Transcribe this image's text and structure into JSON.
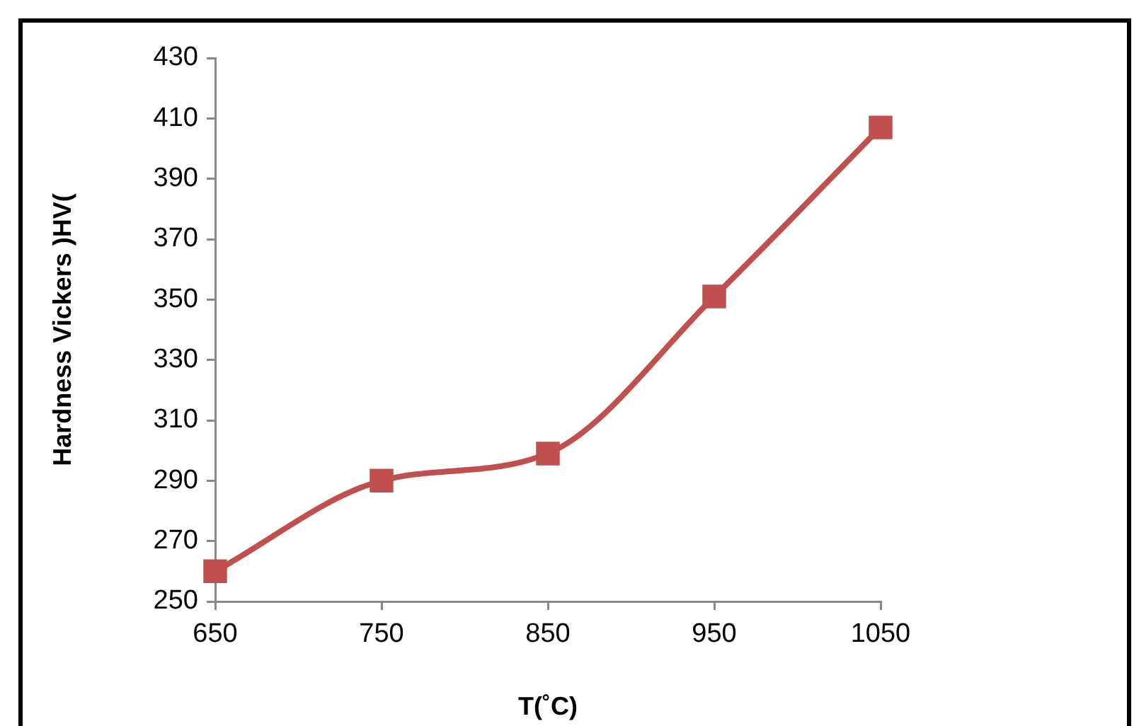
{
  "chart_data": {
    "type": "line",
    "xlabel": "T(˚C)",
    "ylabel": "Hardness Vickers )HV(",
    "x": [
      650,
      750,
      850,
      950,
      1050
    ],
    "series": [
      {
        "color": "#c0504d",
        "values": [
          260,
          290,
          299,
          351,
          407
        ]
      }
    ],
    "xlim": [
      650,
      1050
    ],
    "xticks": [
      650,
      750,
      850,
      950,
      1050
    ],
    "ylim": [
      250,
      430
    ],
    "yticks": [
      250,
      270,
      290,
      310,
      330,
      350,
      370,
      390,
      410,
      430
    ],
    "grid": false,
    "legend": false,
    "marker": "square",
    "line_style": "solid"
  }
}
